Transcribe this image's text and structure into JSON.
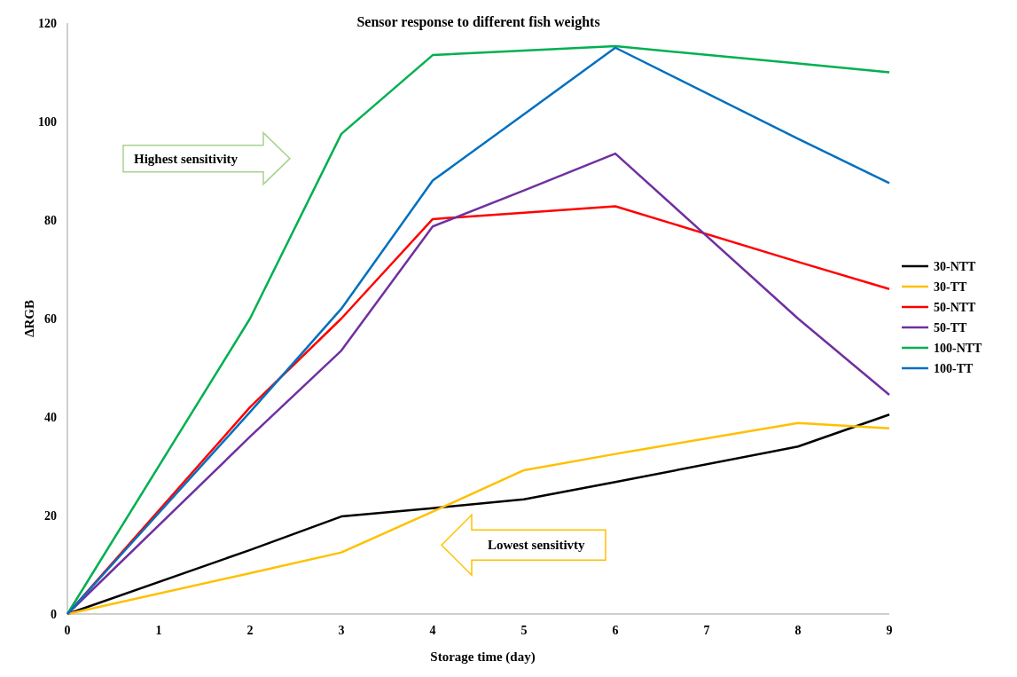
{
  "chart_data": {
    "type": "line",
    "title": "Sensor response to different fish weights",
    "xlabel": "Storage time (day)",
    "ylabel": "ΔRGB",
    "x": [
      0,
      2,
      3,
      4,
      5,
      6,
      8,
      9
    ],
    "xlim": [
      0,
      9
    ],
    "xticks": [
      0,
      1,
      2,
      3,
      4,
      5,
      6,
      7,
      8,
      9
    ],
    "ylim": [
      0,
      120
    ],
    "yticks": [
      0,
      20,
      40,
      60,
      80,
      100,
      120
    ],
    "grid": false,
    "legend": "right",
    "marker": "none",
    "line_style": "solid",
    "annotations": [
      "Highest sensitivity",
      "Lowest sensitivty"
    ],
    "series": [
      {
        "name": "30-NTT",
        "color": "#000000",
        "values": [
          0,
          13,
          19.8,
          21.5,
          23.3,
          26.8,
          34,
          40.5
        ]
      },
      {
        "name": "30-TT",
        "color": "#ffc000",
        "values": [
          0,
          8.3,
          12.5,
          20.8,
          29.2,
          32.5,
          38.8,
          37.7
        ]
      },
      {
        "name": "50-NTT",
        "color": "#ff0000",
        "values": [
          0,
          42,
          60,
          80.2,
          81.5,
          82.8,
          71.5,
          66
        ]
      },
      {
        "name": "50-TT",
        "color": "#7030a0",
        "values": [
          0,
          36,
          53.5,
          78.7,
          86,
          93.5,
          60,
          44.5
        ]
      },
      {
        "name": "100-NTT",
        "color": "#00b050",
        "values": [
          0,
          60,
          97.5,
          113.5,
          114.4,
          115.3,
          111.8,
          110
        ]
      },
      {
        "name": "100-TT",
        "color": "#0070c0",
        "values": [
          0,
          41,
          62,
          88,
          101.5,
          115,
          96.5,
          87.5
        ]
      }
    ]
  }
}
